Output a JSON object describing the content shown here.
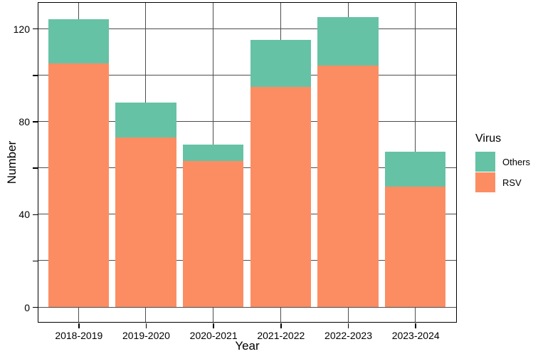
{
  "chart_data": {
    "type": "bar",
    "stacked": true,
    "title": "",
    "xlabel": "Year",
    "ylabel": "Number",
    "categories": [
      "2018-2019",
      "2019-2020",
      "2020-2021",
      "2021-2022",
      "2022-2023",
      "2023-2024"
    ],
    "series": [
      {
        "name": "RSV",
        "color": "#FC8D62",
        "values": [
          105,
          73,
          63,
          95,
          104,
          52
        ]
      },
      {
        "name": "Others",
        "color": "#66C2A5",
        "values": [
          19,
          15,
          7,
          20,
          21,
          15
        ]
      }
    ],
    "y_axis": {
      "ticks": [
        0,
        20,
        40,
        60,
        80,
        100,
        120
      ],
      "labeled_ticks": [
        0,
        40,
        80,
        120
      ],
      "range": [
        -6.25,
        131.25
      ]
    },
    "grid": {
      "horizontal_at": [
        0,
        20,
        40,
        60,
        80,
        100,
        120
      ],
      "vertical_at": "category-centers",
      "color": "#4d4d4d",
      "axis_color": "#000000"
    },
    "legend": {
      "title": "Virus",
      "position": "right",
      "items": [
        {
          "label": "Others",
          "color": "#66C2A5"
        },
        {
          "label": "RSV",
          "color": "#FC8D62"
        }
      ]
    }
  }
}
